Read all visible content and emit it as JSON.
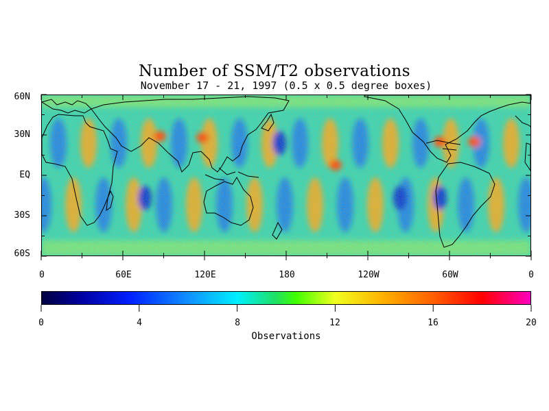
{
  "title": "Number of SSM/T2 observations",
  "subtitle": "November 17 - 21, 1997 (0.5 x 0.5 degree boxes)",
  "lat_labels": [
    "60N",
    "30N",
    "EQ",
    "30S",
    "60S"
  ],
  "lon_labels": [
    "0",
    "60E",
    "120E",
    "180",
    "120W",
    "60W",
    "0"
  ],
  "colorbar": {
    "ticks": [
      "0",
      "4",
      "8",
      "12",
      "16",
      "20"
    ],
    "label": "Observations",
    "min": 0,
    "max": 20,
    "colors": [
      "#000040",
      "#0000a0",
      "#0020ff",
      "#1090ff",
      "#00f0ff",
      "#20e060",
      "#40ff00",
      "#f0ff20",
      "#ffb000",
      "#ff6000",
      "#ff0000",
      "#ff00c0"
    ]
  },
  "map": {
    "projection": "cylindrical equidistant",
    "lon_range": [
      0,
      360
    ],
    "lat_range": [
      -60,
      60
    ],
    "background_level": 9,
    "swath_pattern": "alternating high/low observation bands along orbital tracks",
    "coastlines": true
  }
}
